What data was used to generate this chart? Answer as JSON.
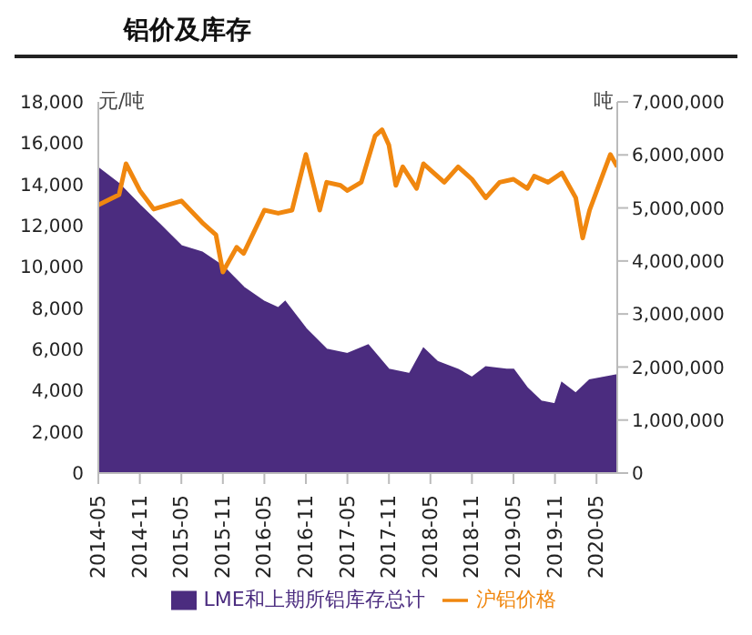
{
  "chart_data": {
    "type": "line",
    "title": "铝价及库存",
    "ylabel": "元/吨",
    "y2label": "吨",
    "xlim": [
      "2014-05",
      "2020-08"
    ],
    "xticks": [
      "2014-05",
      "2014-11",
      "2015-05",
      "2015-11",
      "2016-05",
      "2016-11",
      "2017-05",
      "2017-11",
      "2018-05",
      "2018-11",
      "2019-05",
      "2019-11",
      "2020-05"
    ],
    "ylim": [
      0,
      18000
    ],
    "yticks": [
      0,
      {
        "value": 2000,
        "label": "2,000"
      },
      {
        "value": 4000,
        "label": "4,000"
      },
      {
        "value": 6000,
        "label": "6,000"
      },
      {
        "value": 8000,
        "label": "8,000"
      },
      {
        "value": 10000,
        "label": "10,000"
      },
      {
        "value": 12000,
        "label": "12,000"
      },
      {
        "value": 14000,
        "label": "14,000"
      },
      {
        "value": 16000,
        "label": "16,000"
      },
      {
        "value": 18000,
        "label": "18,000"
      }
    ],
    "y2lim": [
      0,
      7000000
    ],
    "y2ticks": [
      0,
      {
        "value": 1000000,
        "label": "1,000,000"
      },
      {
        "value": 2000000,
        "label": "2,000,000"
      },
      {
        "value": 3000000,
        "label": "3,000,000"
      },
      {
        "value": 4000000,
        "label": "4,000,000"
      },
      {
        "value": 5000000,
        "label": "5,000,000"
      },
      {
        "value": 6000000,
        "label": "6,000,000"
      },
      {
        "value": 7000000,
        "label": "7,000,000"
      }
    ],
    "grid": false,
    "legend": "bottom",
    "marker": "none",
    "line_style": "solid",
    "series": [
      {
        "name": "LME和上期所铝库存总计",
        "type": "area",
        "axis": "y2",
        "color": "#4b2c7f",
        "x": [
          "2014-05",
          "2014-08",
          "2014-11",
          "2015-02",
          "2015-05",
          "2015-08",
          "2015-11",
          "2016-02",
          "2016-05",
          "2016-07",
          "2016-08",
          "2016-11",
          "2017-02",
          "2017-05",
          "2017-08",
          "2017-11",
          "2018-02",
          "2018-04",
          "2018-06",
          "2018-09",
          "2018-11",
          "2019-01",
          "2019-04",
          "2019-05",
          "2019-07",
          "2019-09",
          "2019-11",
          "2019-12",
          "2020-02",
          "2020-04",
          "2020-08"
        ],
        "values": [
          5750000,
          5450000,
          5050000,
          4670000,
          4280000,
          4160000,
          3900000,
          3500000,
          3230000,
          3110000,
          3230000,
          2720000,
          2330000,
          2250000,
          2410000,
          1950000,
          1870000,
          2350000,
          2100000,
          1950000,
          1800000,
          2000000,
          1950000,
          1950000,
          1600000,
          1350000,
          1300000,
          1700000,
          1500000,
          1750000,
          1850000
        ]
      },
      {
        "name": "沪铝价格",
        "axis": "y",
        "color": "#f0870f",
        "x": [
          "2014-05",
          "2014-08",
          "2014-09",
          "2014-11",
          "2015-01",
          "2015-05",
          "2015-08",
          "2015-10",
          "2015-11",
          "2016-01",
          "2016-02",
          "2016-05",
          "2016-07",
          "2016-09",
          "2016-11",
          "2017-01",
          "2017-02",
          "2017-04",
          "2017-05",
          "2017-07",
          "2017-09",
          "2017-10",
          "2017-11",
          "2017-12",
          "2018-01",
          "2018-03",
          "2018-04",
          "2018-05",
          "2018-07",
          "2018-09",
          "2018-11",
          "2019-01",
          "2019-03",
          "2019-05",
          "2019-07",
          "2019-08",
          "2019-10",
          "2019-12",
          "2020-02",
          "2020-03",
          "2020-04",
          "2020-06",
          "2020-07",
          "2020-08"
        ],
        "values": [
          13000,
          13500,
          15000,
          13700,
          12800,
          13200,
          12150,
          11550,
          9750,
          10950,
          10650,
          12750,
          12600,
          12750,
          15450,
          12750,
          14100,
          13950,
          13700,
          14100,
          16350,
          16650,
          15900,
          13950,
          14850,
          13800,
          15000,
          14700,
          14100,
          14850,
          14250,
          13350,
          14100,
          14250,
          13800,
          14400,
          14100,
          14550,
          13350,
          11400,
          12750,
          14550,
          15450,
          14850
        ]
      }
    ]
  }
}
